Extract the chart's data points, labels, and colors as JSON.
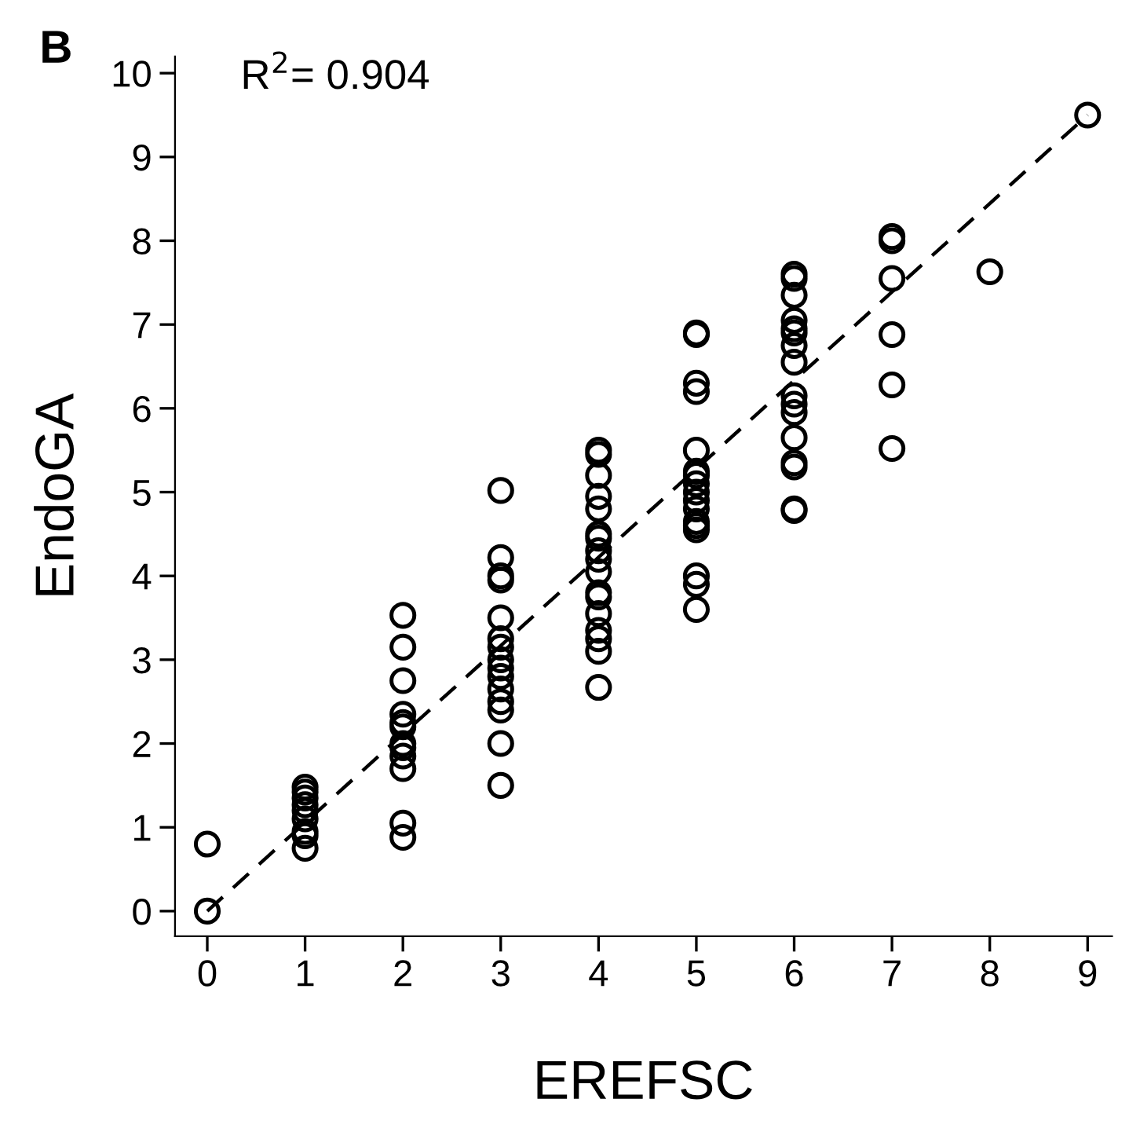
{
  "chart_data": {
    "type": "scatter",
    "title": "B",
    "xlabel": "EREFSC",
    "ylabel": "EndoGA",
    "annotations": [
      "R$^{2}$= 0.904"
    ],
    "xlim": [
      -0.33,
      9.25
    ],
    "ylim": [
      -0.3,
      10.2
    ],
    "xticks": [
      0,
      1,
      2,
      3,
      4,
      5,
      6,
      7,
      8,
      9
    ],
    "yticks": [
      0,
      1,
      2,
      3,
      4,
      5,
      6,
      7,
      8,
      9,
      10
    ],
    "grid": false,
    "legend": false,
    "marker": "circle",
    "series": [
      {
        "color": "#000000",
        "x": [
          0,
          0,
          1,
          1,
          1,
          1,
          1,
          1,
          1,
          1,
          1,
          2,
          2,
          2,
          2,
          2,
          2,
          2,
          2,
          2,
          2,
          2,
          2,
          3,
          3,
          3,
          3,
          3,
          3,
          3,
          3,
          3,
          3,
          3,
          3,
          3,
          3,
          3,
          4,
          4,
          4,
          4,
          4,
          4,
          4,
          4,
          4,
          4,
          4,
          4,
          4,
          4,
          4,
          4,
          4,
          5,
          5,
          5,
          5,
          5,
          5,
          5,
          5,
          5,
          5,
          5,
          5,
          5,
          5,
          5,
          5,
          5,
          6,
          6,
          6,
          6,
          6,
          6,
          6,
          6,
          6,
          6,
          6,
          6,
          6,
          6,
          6,
          6,
          7,
          7,
          7,
          7,
          7,
          7,
          8,
          9
        ],
        "values": [
          0,
          0.8,
          1.48,
          1.42,
          1.35,
          1.27,
          1.2,
          1.1,
          0.95,
          0.9,
          0.75,
          3.53,
          3.15,
          2.75,
          2.35,
          2.25,
          2.2,
          2.0,
          1.95,
          1.85,
          1.7,
          1.05,
          0.88,
          5.02,
          4.22,
          4.0,
          3.95,
          3.5,
          3.25,
          3.15,
          3.0,
          2.9,
          2.8,
          2.65,
          2.5,
          2.4,
          2.0,
          1.5,
          5.5,
          5.45,
          5.2,
          4.95,
          4.8,
          4.5,
          4.45,
          4.3,
          4.2,
          4.05,
          3.8,
          3.75,
          3.55,
          3.35,
          3.25,
          3.1,
          2.67,
          6.9,
          6.88,
          6.3,
          6.2,
          5.5,
          5.25,
          5.2,
          5.1,
          5.0,
          4.9,
          4.8,
          4.65,
          4.6,
          4.55,
          4.0,
          3.9,
          3.6,
          7.6,
          7.55,
          7.35,
          7.05,
          6.95,
          6.9,
          6.75,
          6.55,
          6.15,
          6.05,
          5.95,
          5.65,
          5.35,
          5.3,
          4.8,
          4.78,
          8.05,
          8.0,
          7.55,
          6.88,
          6.28,
          5.52,
          7.63,
          9.5
        ]
      },
      {
        "type": "line",
        "color": "#000000",
        "line_style": "dashed",
        "marker": "none",
        "x": [
          0,
          9
        ],
        "values": [
          0,
          9.5
        ]
      }
    ]
  }
}
